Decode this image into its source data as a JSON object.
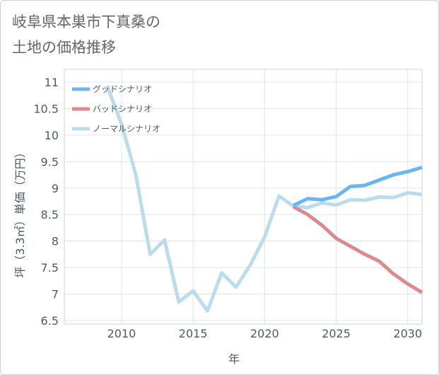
{
  "title": {
    "line1": "岐阜県本巣市下真桑の",
    "line2": "土地の価格推移"
  },
  "colors": {
    "good": "#6cb6ef",
    "bad": "#db8a91",
    "normal": "#bcdceb",
    "grid": "#dbe6ee",
    "text": "#4d5b66"
  },
  "chart_data": {
    "type": "line",
    "title": "岐阜県本巣市下真桑の土地の価格推移",
    "xlabel": "年",
    "ylabel": "坪（3.3㎡）単価（万円）",
    "xlim": [
      2006,
      2031
    ],
    "ylim": [
      6.5,
      11
    ],
    "x_ticks": [
      2010,
      2015,
      2020,
      2025,
      2030
    ],
    "y_ticks": [
      6.5,
      7,
      7.5,
      8,
      8.5,
      9,
      9.5,
      10,
      10.5,
      11
    ],
    "legend_position": "top-left",
    "series": [
      {
        "name": "グッドシナリオ",
        "key": "good",
        "x": [
          2022,
          2023,
          2024,
          2025,
          2026,
          2027,
          2028,
          2029,
          2030,
          2031
        ],
        "values": [
          8.67,
          8.8,
          8.78,
          8.84,
          9.03,
          9.05,
          9.15,
          9.25,
          9.31,
          9.39
        ]
      },
      {
        "name": "バッドシナリオ",
        "key": "bad",
        "x": [
          2022,
          2023,
          2024,
          2025,
          2026,
          2027,
          2028,
          2029,
          2030,
          2031
        ],
        "values": [
          8.65,
          8.5,
          8.3,
          8.05,
          7.9,
          7.75,
          7.62,
          7.38,
          7.19,
          7.03
        ]
      },
      {
        "name": "ノーマルシナリオ",
        "key": "normal",
        "x": [
          2009,
          2010,
          2011,
          2012,
          2013,
          2014,
          2015,
          2016,
          2017,
          2018,
          2019,
          2020,
          2021,
          2022,
          2023,
          2024,
          2025,
          2026,
          2027,
          2028,
          2029,
          2030,
          2031
        ],
        "values": [
          10.93,
          10.2,
          9.25,
          7.75,
          8.02,
          6.85,
          7.06,
          6.68,
          7.4,
          7.13,
          7.55,
          8.08,
          8.85,
          8.66,
          8.63,
          8.72,
          8.68,
          8.78,
          8.77,
          8.83,
          8.82,
          8.91,
          8.88
        ]
      }
    ]
  }
}
